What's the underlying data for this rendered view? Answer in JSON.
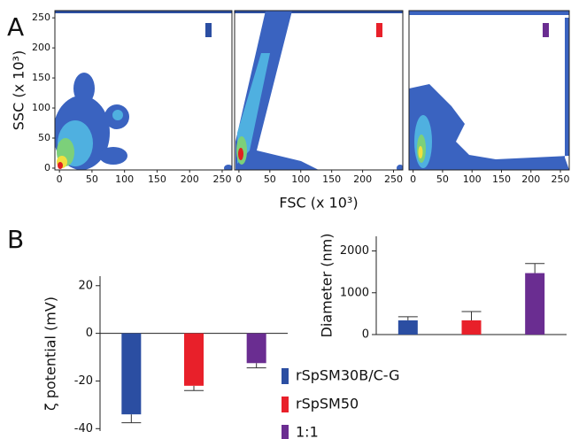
{
  "panels": [
    "A",
    "B"
  ],
  "chart_data": [
    {
      "type": "density",
      "color": "#2b4ea2",
      "xlim": [
        -7,
        265
      ],
      "ylim": [
        -3,
        262
      ],
      "xticks": [
        0,
        50,
        100,
        150,
        200,
        250
      ],
      "yticks": [
        0,
        50,
        100,
        150,
        200,
        250
      ],
      "ylabel": "SSC (x 10³)"
    },
    {
      "type": "density",
      "color": "#e8202a",
      "xlim": [
        -7,
        265
      ],
      "ylim": [
        -3,
        262
      ],
      "xticks": [
        0,
        50,
        100,
        150,
        200,
        250
      ],
      "xlabel": "FSC (x 10³)"
    },
    {
      "type": "density",
      "color": "#6a2d91",
      "xlim": [
        -7,
        265
      ],
      "ylim": [
        -3,
        262
      ],
      "xticks": [
        0,
        50,
        100,
        150,
        200,
        250
      ]
    },
    {
      "type": "bar",
      "ylabel": "ζ potential (mV)",
      "ylim": [
        -41,
        24
      ],
      "yticks": [
        -40,
        -20,
        0,
        20
      ],
      "series": [
        {
          "name": "rSpSM30B/C-G",
          "color": "#2b4ea2",
          "values": [
            -34
          ],
          "errors": [
            3.5
          ]
        },
        {
          "name": "rSpSM50",
          "color": "#e8202a",
          "values": [
            -22
          ],
          "errors": [
            2
          ]
        },
        {
          "name": "1:1",
          "color": "#6a2d91",
          "values": [
            -12.5
          ],
          "errors": [
            2
          ]
        }
      ]
    },
    {
      "type": "bar",
      "ylabel": "Diameter (nm)",
      "ylim": [
        0,
        2350
      ],
      "yticks": [
        0,
        1000,
        2000
      ],
      "series": [
        {
          "color": "#2b4ea2",
          "values": [
            340
          ],
          "errors": [
            85
          ]
        },
        {
          "color": "#e8202a",
          "values": [
            340
          ],
          "errors": [
            210
          ]
        },
        {
          "color": "#6a2d91",
          "values": [
            1470
          ],
          "errors": [
            230
          ]
        }
      ]
    }
  ]
}
